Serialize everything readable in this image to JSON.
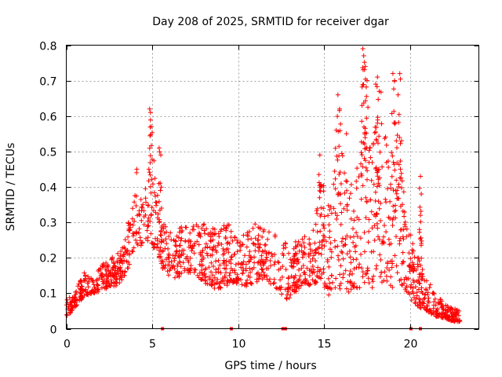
{
  "chart_data": {
    "type": "scatter",
    "title": "Day 208 of 2025, SRMTID for receiver dgar",
    "xlabel": "GPS time / hours",
    "ylabel": "SRMTID / TECUs",
    "xlim": [
      0,
      24
    ],
    "ylim": [
      0,
      0.8
    ],
    "xticks": [
      0,
      5,
      10,
      15,
      20
    ],
    "xtick_labels": [
      "0",
      "5",
      "10",
      "15",
      "20"
    ],
    "yticks": [
      0,
      0.1,
      0.2,
      0.3,
      0.4,
      0.5,
      0.6,
      0.7,
      0.8
    ],
    "ytick_labels": [
      "0",
      "0.1",
      "0.2",
      "0.3",
      "0.4",
      "0.5",
      "0.6",
      "0.7",
      "0.8"
    ],
    "grid": true,
    "marker": "+",
    "color": "#ff0000",
    "gap_markers_x": [
      5.6,
      9.6,
      12.6,
      12.75,
      20.05,
      20.6
    ],
    "envelope": [
      [
        0.0,
        0.03,
        0.08
      ],
      [
        0.5,
        0.06,
        0.1
      ],
      [
        1.0,
        0.09,
        0.16
      ],
      [
        1.5,
        0.1,
        0.14
      ],
      [
        2.0,
        0.1,
        0.18
      ],
      [
        2.5,
        0.12,
        0.2
      ],
      [
        3.0,
        0.12,
        0.22
      ],
      [
        3.5,
        0.16,
        0.27
      ],
      [
        4.0,
        0.22,
        0.4
      ],
      [
        4.5,
        0.24,
        0.36
      ],
      [
        4.9,
        0.25,
        0.55
      ],
      [
        5.3,
        0.2,
        0.4
      ],
      [
        5.7,
        0.16,
        0.3
      ],
      [
        6.2,
        0.14,
        0.27
      ],
      [
        6.8,
        0.15,
        0.3
      ],
      [
        7.3,
        0.16,
        0.32
      ],
      [
        7.8,
        0.14,
        0.3
      ],
      [
        8.3,
        0.12,
        0.31
      ],
      [
        8.8,
        0.11,
        0.27
      ],
      [
        9.3,
        0.12,
        0.3
      ],
      [
        9.8,
        0.13,
        0.28
      ],
      [
        10.3,
        0.12,
        0.27
      ],
      [
        10.8,
        0.12,
        0.3
      ],
      [
        11.3,
        0.14,
        0.29
      ],
      [
        11.8,
        0.13,
        0.28
      ],
      [
        12.3,
        0.11,
        0.26
      ],
      [
        12.8,
        0.08,
        0.24
      ],
      [
        13.3,
        0.1,
        0.25
      ],
      [
        13.8,
        0.13,
        0.27
      ],
      [
        14.3,
        0.12,
        0.26
      ],
      [
        14.8,
        0.14,
        0.45
      ],
      [
        15.3,
        0.09,
        0.35
      ],
      [
        15.8,
        0.11,
        0.58
      ],
      [
        16.3,
        0.1,
        0.42
      ],
      [
        16.8,
        0.11,
        0.4
      ],
      [
        17.3,
        0.1,
        0.72
      ],
      [
        17.8,
        0.11,
        0.5
      ],
      [
        18.3,
        0.12,
        0.7
      ],
      [
        18.8,
        0.12,
        0.45
      ],
      [
        19.2,
        0.11,
        0.68
      ],
      [
        19.6,
        0.12,
        0.4
      ],
      [
        20.0,
        0.08,
        0.27
      ],
      [
        20.5,
        0.06,
        0.22
      ],
      [
        21.0,
        0.05,
        0.14
      ],
      [
        21.5,
        0.03,
        0.1
      ],
      [
        22.0,
        0.03,
        0.07
      ],
      [
        22.5,
        0.02,
        0.06
      ],
      [
        22.9,
        0.02,
        0.05
      ]
    ],
    "spikes": [
      [
        4.85,
        0.62
      ],
      [
        4.9,
        0.61
      ],
      [
        4.95,
        0.57
      ],
      [
        5.4,
        0.51
      ],
      [
        5.5,
        0.49
      ],
      [
        4.1,
        0.45
      ],
      [
        14.75,
        0.49
      ],
      [
        15.8,
        0.66
      ],
      [
        15.9,
        0.62
      ],
      [
        15.7,
        0.56
      ],
      [
        16.3,
        0.55
      ],
      [
        17.25,
        0.79
      ],
      [
        17.3,
        0.77
      ],
      [
        17.4,
        0.74
      ],
      [
        17.5,
        0.7
      ],
      [
        17.2,
        0.63
      ],
      [
        18.0,
        0.69
      ],
      [
        18.1,
        0.71
      ],
      [
        18.2,
        0.67
      ],
      [
        18.1,
        0.58
      ],
      [
        19.0,
        0.72
      ],
      [
        19.1,
        0.7
      ],
      [
        19.3,
        0.66
      ],
      [
        19.4,
        0.72
      ],
      [
        19.5,
        0.53
      ],
      [
        19.2,
        0.53
      ],
      [
        20.6,
        0.43
      ],
      [
        20.65,
        0.38
      ],
      [
        20.6,
        0.32
      ]
    ],
    "points_per_hour": 70,
    "random_seed": 208
  }
}
